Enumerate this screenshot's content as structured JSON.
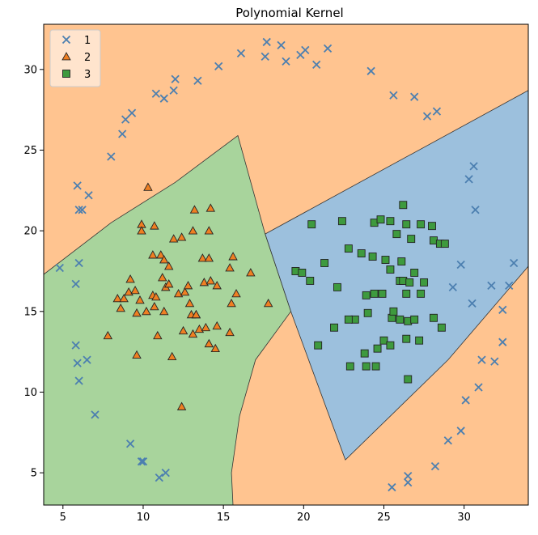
{
  "chart_data": {
    "type": "scatter",
    "title": "Polynomial Kernel",
    "xlabel": "",
    "ylabel": "",
    "xlim": [
      3.8,
      34.0
    ],
    "ylim": [
      3.0,
      32.8
    ],
    "x_ticks": [
      5,
      10,
      15,
      20,
      25,
      30
    ],
    "y_ticks": [
      5,
      10,
      15,
      20,
      25,
      30
    ],
    "x_tick_labels": [
      "5",
      "10",
      "15",
      "20",
      "25",
      "30"
    ],
    "y_tick_labels": [
      "5",
      "10",
      "15",
      "20",
      "25",
      "30"
    ],
    "grid": false,
    "legend_position": "top-left",
    "legend": [
      {
        "label": "1",
        "marker": "x",
        "color": "#4c7fb0"
      },
      {
        "label": "2",
        "marker": "triangle",
        "color": "#ef7f22"
      },
      {
        "label": "3",
        "marker": "square",
        "color": "#3e9a3e"
      }
    ],
    "regions": [
      {
        "class": "1",
        "color": "#ffc490",
        "polygon": [
          [
            3.8,
            3.0
          ],
          [
            34.0,
            3.0
          ],
          [
            34.0,
            32.8
          ],
          [
            3.8,
            32.8
          ]
        ]
      },
      {
        "class": "3",
        "color": "#9cc0dd",
        "polygon": [
          [
            17.6,
            19.8
          ],
          [
            34.0,
            28.7
          ],
          [
            34.0,
            17.8
          ],
          [
            29.0,
            12.0
          ],
          [
            22.6,
            5.8
          ],
          [
            19.2,
            15.0
          ]
        ]
      },
      {
        "class": "2",
        "color": "#a8d49c",
        "polygon": [
          [
            3.8,
            17.3
          ],
          [
            8.0,
            20.5
          ],
          [
            12.0,
            23.0
          ],
          [
            15.9,
            25.9
          ],
          [
            17.6,
            19.8
          ],
          [
            19.2,
            15.0
          ],
          [
            17.0,
            12.0
          ],
          [
            16.0,
            8.5
          ],
          [
            15.5,
            5.0
          ],
          [
            15.6,
            3.0
          ],
          [
            3.8,
            3.0
          ]
        ]
      }
    ],
    "series": [
      {
        "name": "1",
        "marker": "x",
        "color": "#4c7fb0",
        "points": [
          [
            4.8,
            17.7
          ],
          [
            5.8,
            16.7
          ],
          [
            6.0,
            18.0
          ],
          [
            6.0,
            21.3
          ],
          [
            6.2,
            21.3
          ],
          [
            5.9,
            22.8
          ],
          [
            6.6,
            22.2
          ],
          [
            5.8,
            12.9
          ],
          [
            5.9,
            11.8
          ],
          [
            6.5,
            12.0
          ],
          [
            6.0,
            10.7
          ],
          [
            7.0,
            8.6
          ],
          [
            8.0,
            24.6
          ],
          [
            8.7,
            26.0
          ],
          [
            8.9,
            26.9
          ],
          [
            9.3,
            27.3
          ],
          [
            10.8,
            28.5
          ],
          [
            11.3,
            28.2
          ],
          [
            11.9,
            28.7
          ],
          [
            12.0,
            29.4
          ],
          [
            13.4,
            29.3
          ],
          [
            14.7,
            30.2
          ],
          [
            16.1,
            31.0
          ],
          [
            17.6,
            30.8
          ],
          [
            17.7,
            31.7
          ],
          [
            18.6,
            31.5
          ],
          [
            18.9,
            30.5
          ],
          [
            19.8,
            30.9
          ],
          [
            20.1,
            31.2
          ],
          [
            20.8,
            30.3
          ],
          [
            21.5,
            31.3
          ],
          [
            24.2,
            29.9
          ],
          [
            25.6,
            28.4
          ],
          [
            26.9,
            28.3
          ],
          [
            27.7,
            27.1
          ],
          [
            28.3,
            27.4
          ],
          [
            9.2,
            6.8
          ],
          [
            9.9,
            5.7
          ],
          [
            10.0,
            5.7
          ],
          [
            11.0,
            4.7
          ],
          [
            11.4,
            5.0
          ],
          [
            25.5,
            4.1
          ],
          [
            26.5,
            4.4
          ],
          [
            26.5,
            4.8
          ],
          [
            28.2,
            5.4
          ],
          [
            29.0,
            7.0
          ],
          [
            29.8,
            7.6
          ],
          [
            30.1,
            9.5
          ],
          [
            30.9,
            10.3
          ],
          [
            31.1,
            12.0
          ],
          [
            31.9,
            11.9
          ],
          [
            32.4,
            13.1
          ],
          [
            32.4,
            15.1
          ],
          [
            32.8,
            16.6
          ],
          [
            33.1,
            18.0
          ],
          [
            31.7,
            16.6
          ],
          [
            30.5,
            15.5
          ],
          [
            29.3,
            16.5
          ],
          [
            29.8,
            17.9
          ],
          [
            30.3,
            23.2
          ],
          [
            30.6,
            24.0
          ],
          [
            30.7,
            21.3
          ]
        ]
      },
      {
        "name": "2",
        "marker": "triangle",
        "color": "#ef7f22",
        "points": [
          [
            10.3,
            22.7
          ],
          [
            9.9,
            20.4
          ],
          [
            9.9,
            20.0
          ],
          [
            10.7,
            20.3
          ],
          [
            13.2,
            21.3
          ],
          [
            14.2,
            21.4
          ],
          [
            11.9,
            19.5
          ],
          [
            12.4,
            19.6
          ],
          [
            13.1,
            20.0
          ],
          [
            14.1,
            20.0
          ],
          [
            10.6,
            18.5
          ],
          [
            11.1,
            18.5
          ],
          [
            11.3,
            18.2
          ],
          [
            11.6,
            17.8
          ],
          [
            11.2,
            17.1
          ],
          [
            11.4,
            16.5
          ],
          [
            11.6,
            16.7
          ],
          [
            12.2,
            16.1
          ],
          [
            12.6,
            16.2
          ],
          [
            12.8,
            16.6
          ],
          [
            13.7,
            18.3
          ],
          [
            14.1,
            18.3
          ],
          [
            15.4,
            17.7
          ],
          [
            15.6,
            18.4
          ],
          [
            16.7,
            17.4
          ],
          [
            9.2,
            17.0
          ],
          [
            9.1,
            16.2
          ],
          [
            9.5,
            16.3
          ],
          [
            8.4,
            15.8
          ],
          [
            8.8,
            15.8
          ],
          [
            8.6,
            15.2
          ],
          [
            9.8,
            15.7
          ],
          [
            10.6,
            16.0
          ],
          [
            10.8,
            15.9
          ],
          [
            10.7,
            15.3
          ],
          [
            10.2,
            15.0
          ],
          [
            9.6,
            14.9
          ],
          [
            11.3,
            15.0
          ],
          [
            12.9,
            15.5
          ],
          [
            13.0,
            14.8
          ],
          [
            13.3,
            14.8
          ],
          [
            13.3,
            14.8
          ],
          [
            13.8,
            16.8
          ],
          [
            14.2,
            16.9
          ],
          [
            14.6,
            16.6
          ],
          [
            15.8,
            16.1
          ],
          [
            15.5,
            15.5
          ],
          [
            17.8,
            15.5
          ],
          [
            7.8,
            13.5
          ],
          [
            10.9,
            13.5
          ],
          [
            12.5,
            13.8
          ],
          [
            13.1,
            13.6
          ],
          [
            13.5,
            13.9
          ],
          [
            13.9,
            14.0
          ],
          [
            14.6,
            14.1
          ],
          [
            15.4,
            13.7
          ],
          [
            14.1,
            13.0
          ],
          [
            14.5,
            12.7
          ],
          [
            9.6,
            12.3
          ],
          [
            11.8,
            12.2
          ],
          [
            12.4,
            9.1
          ]
        ]
      },
      {
        "name": "3",
        "marker": "square",
        "color": "#3e9a3e",
        "points": [
          [
            26.2,
            21.6
          ],
          [
            25.4,
            20.6
          ],
          [
            24.4,
            20.5
          ],
          [
            24.8,
            20.7
          ],
          [
            22.4,
            20.6
          ],
          [
            20.5,
            20.4
          ],
          [
            26.4,
            20.4
          ],
          [
            27.3,
            20.4
          ],
          [
            28.0,
            20.3
          ],
          [
            25.8,
            19.8
          ],
          [
            26.7,
            19.5
          ],
          [
            28.1,
            19.4
          ],
          [
            28.5,
            19.2
          ],
          [
            28.8,
            19.2
          ],
          [
            22.8,
            18.9
          ],
          [
            23.6,
            18.6
          ],
          [
            24.3,
            18.4
          ],
          [
            25.1,
            18.2
          ],
          [
            26.1,
            18.1
          ],
          [
            21.3,
            18.0
          ],
          [
            19.5,
            17.5
          ],
          [
            19.9,
            17.4
          ],
          [
            20.4,
            16.9
          ],
          [
            25.4,
            17.6
          ],
          [
            26.9,
            17.4
          ],
          [
            26.0,
            16.9
          ],
          [
            26.2,
            16.9
          ],
          [
            26.6,
            16.8
          ],
          [
            27.5,
            16.8
          ],
          [
            24.4,
            16.1
          ],
          [
            23.9,
            16.0
          ],
          [
            24.9,
            16.1
          ],
          [
            22.1,
            16.5
          ],
          [
            26.4,
            16.1
          ],
          [
            27.3,
            16.1
          ],
          [
            26.0,
            14.5
          ],
          [
            26.5,
            14.4
          ],
          [
            25.5,
            14.6
          ],
          [
            26.9,
            14.5
          ],
          [
            28.1,
            14.6
          ],
          [
            25.6,
            15.0
          ],
          [
            24.0,
            14.9
          ],
          [
            23.2,
            14.5
          ],
          [
            22.8,
            14.5
          ],
          [
            21.9,
            14.0
          ],
          [
            28.6,
            14.0
          ],
          [
            25.0,
            13.2
          ],
          [
            25.4,
            12.9
          ],
          [
            26.4,
            13.3
          ],
          [
            27.2,
            13.2
          ],
          [
            23.8,
            12.4
          ],
          [
            24.6,
            12.7
          ],
          [
            20.9,
            12.9
          ],
          [
            22.9,
            11.6
          ],
          [
            23.9,
            11.6
          ],
          [
            24.5,
            11.6
          ],
          [
            26.5,
            10.8
          ]
        ]
      }
    ]
  }
}
